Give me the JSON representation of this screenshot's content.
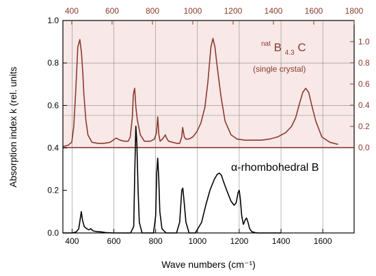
{
  "chart_data": [
    {
      "type": "line",
      "panel": "upper",
      "colors": {
        "line": "#8B3A2B",
        "ticks": "#8B3A2B",
        "baseline": "#8B3A2B",
        "fill": "#f8e8e8"
      },
      "x_axis": {
        "label": "",
        "range": [
          356,
          1800
        ],
        "ticks": [
          400,
          600,
          800,
          1000,
          1200,
          1400,
          1600,
          1800
        ],
        "position": "top"
      },
      "y_axis_left": {
        "ticks": [
          0.4,
          0.6,
          0.8,
          1.0
        ]
      },
      "y_axis_right": {
        "range": [
          0.0,
          1.2
        ],
        "ticks": [
          0.0,
          0.2,
          0.4,
          0.6,
          0.8,
          1.0
        ]
      },
      "annotation": {
        "sup": "nat",
        "main": "B",
        "sub": "4.3",
        "tail": "C",
        "note": "(single crystal)"
      },
      "series": [
        {
          "x": [
            356,
            380,
            400,
            410,
            420,
            430,
            440,
            448,
            455,
            460,
            470,
            480,
            500,
            530,
            560,
            590,
            620,
            640,
            660,
            680,
            690,
            700,
            705,
            712,
            718,
            725,
            740,
            760,
            790,
            810,
            820,
            826,
            832,
            838,
            850,
            864,
            870,
            880,
            900,
            920,
            935,
            945,
            950,
            958,
            965,
            980,
            1000,
            1020,
            1040,
            1060,
            1075,
            1090,
            1100,
            1110,
            1120,
            1140,
            1160,
            1190,
            1220,
            1260,
            1300,
            1340,
            1380,
            1420,
            1460,
            1490,
            1510,
            1530,
            1545,
            1560,
            1575,
            1590,
            1610,
            1640,
            1680,
            1720,
            1760,
            1800
          ],
          "y": [
            0.01,
            0.02,
            0.05,
            0.2,
            0.55,
            0.95,
            1.02,
            0.9,
            0.7,
            0.5,
            0.26,
            0.12,
            0.05,
            0.04,
            0.04,
            0.05,
            0.09,
            0.07,
            0.06,
            0.06,
            0.1,
            0.28,
            0.5,
            0.56,
            0.38,
            0.26,
            0.12,
            0.06,
            0.06,
            0.08,
            0.14,
            0.29,
            0.12,
            0.06,
            0.08,
            0.12,
            0.09,
            0.06,
            0.05,
            0.04,
            0.04,
            0.1,
            0.19,
            0.1,
            0.08,
            0.08,
            0.1,
            0.15,
            0.23,
            0.38,
            0.62,
            0.95,
            1.03,
            0.95,
            0.78,
            0.48,
            0.25,
            0.12,
            0.08,
            0.07,
            0.07,
            0.07,
            0.08,
            0.1,
            0.14,
            0.2,
            0.28,
            0.42,
            0.52,
            0.56,
            0.52,
            0.4,
            0.25,
            0.1,
            0.05,
            0.03,
            0.02,
            0.02
          ]
        }
      ]
    },
    {
      "type": "line",
      "panel": "lower",
      "colors": {
        "line": "#000000"
      },
      "x_axis": {
        "label": "Wave numbers (cm⁻¹)",
        "range": [
          356,
          1750
        ],
        "ticks": [
          400,
          600,
          800,
          1000,
          1200,
          1400,
          1600
        ]
      },
      "y_axis": {
        "label": "Absorption index k (rel. units",
        "range": [
          0.0,
          0.4
        ],
        "ticks": [
          0.0,
          0.2
        ]
      },
      "annotation": "α-rhombohedral B",
      "series": [
        {
          "x": [
            356,
            400,
            420,
            432,
            438,
            444,
            450,
            458,
            470,
            480,
            490,
            500,
            520,
            540,
            560,
            600,
            650,
            680,
            695,
            700,
            705,
            710,
            716,
            722,
            735,
            760,
            790,
            800,
            805,
            810,
            815,
            820,
            830,
            850,
            880,
            900,
            915,
            925,
            930,
            936,
            945,
            960,
            990,
            1020,
            1040,
            1060,
            1080,
            1095,
            1105,
            1115,
            1125,
            1140,
            1160,
            1175,
            1185,
            1195,
            1200,
            1205,
            1212,
            1220,
            1228,
            1235,
            1242,
            1250,
            1260,
            1275,
            1290,
            1320,
            1360,
            1400
          ],
          "y": [
            0.0,
            0.0,
            0.005,
            0.02,
            0.06,
            0.1,
            0.06,
            0.03,
            0.02,
            0.015,
            0.02,
            0.01,
            0.006,
            0.005,
            0.002,
            0.0,
            0.0,
            0.0,
            0.03,
            0.28,
            0.5,
            0.42,
            0.2,
            0.05,
            0.0,
            0.0,
            0.0,
            0.08,
            0.28,
            0.35,
            0.25,
            0.1,
            0.02,
            0.0,
            0.0,
            0.0,
            0.05,
            0.2,
            0.21,
            0.15,
            0.05,
            0.0,
            0.0,
            0.05,
            0.13,
            0.2,
            0.25,
            0.275,
            0.28,
            0.27,
            0.24,
            0.2,
            0.15,
            0.13,
            0.14,
            0.19,
            0.2,
            0.16,
            0.08,
            0.04,
            0.06,
            0.07,
            0.05,
            0.02,
            0.006,
            0.002,
            0.0,
            0.0,
            0.0,
            0.0
          ]
        }
      ]
    }
  ]
}
